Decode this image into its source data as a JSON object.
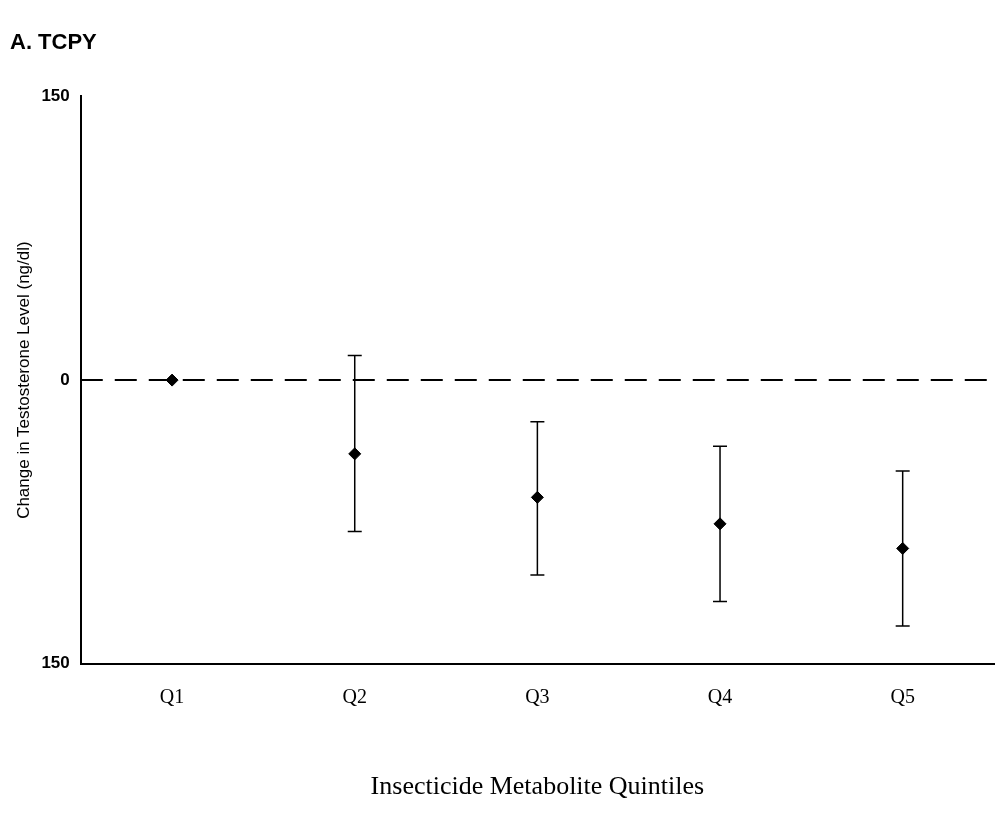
{
  "chart_data": {
    "type": "scatter",
    "title": "A. TCPY",
    "xlabel": "Insecticide Metabolite Quintiles",
    "ylabel": "Change in Testosterone Level (ng/dl)",
    "categories": [
      "Q1",
      "Q2",
      "Q3",
      "Q4",
      "Q5"
    ],
    "values": [
      0,
      -39,
      -62,
      -76,
      -89
    ],
    "errors": [
      null,
      [
        -80,
        13
      ],
      [
        -103,
        -22
      ],
      [
        -117,
        -35
      ],
      [
        -130,
        -48
      ]
    ],
    "color": "#000000",
    "marker": "diamond",
    "ylim": [
      -150,
      150
    ],
    "yticks": [
      {
        "value": -150,
        "label": "150"
      },
      0,
      150
    ],
    "ref_lines": [
      {
        "axis": "y",
        "value": 0,
        "line_style": "dashed",
        "color": "#000000"
      }
    ],
    "grid": false,
    "legend": false
  }
}
